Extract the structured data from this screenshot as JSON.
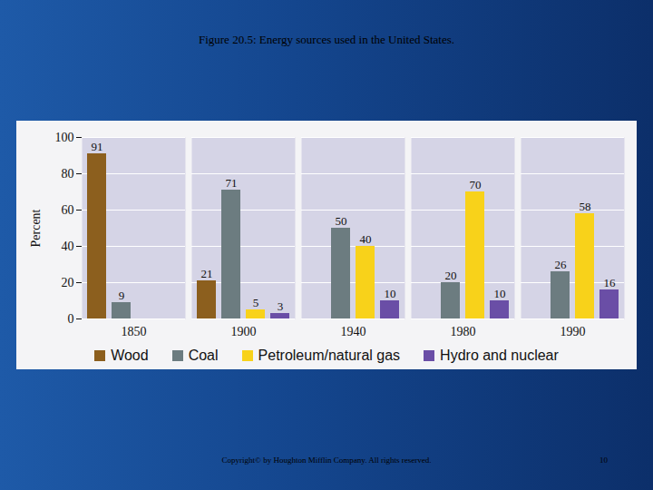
{
  "chart_data": {
    "type": "bar",
    "title": "Figure 20.5: Energy sources used in the United States.",
    "ylabel": "Percent",
    "categories": [
      1850,
      1900,
      1940,
      1980,
      1990
    ],
    "series": [
      {
        "name": "Wood",
        "color": "#8c5f1e",
        "values": [
          91,
          21,
          null,
          null,
          null
        ]
      },
      {
        "name": "Coal",
        "color": "#6c7c80",
        "values": [
          9,
          71,
          50,
          20,
          26
        ]
      },
      {
        "name": "Petroleum/natural gas",
        "color": "#f8d21a",
        "values": [
          null,
          5,
          40,
          70,
          58
        ]
      },
      {
        "name": "Hydro and nuclear",
        "color": "#6a4ea6",
        "values": [
          null,
          3,
          10,
          10,
          16
        ]
      }
    ],
    "ylim": [
      0,
      100
    ],
    "yticks": [
      0,
      20,
      40,
      60,
      80,
      100
    ],
    "grid": true,
    "data_labels": true,
    "legend": "bottom"
  },
  "footer": "Copyright© by Houghton Mifflin Company. All rights reserved.",
  "page_number": 10
}
